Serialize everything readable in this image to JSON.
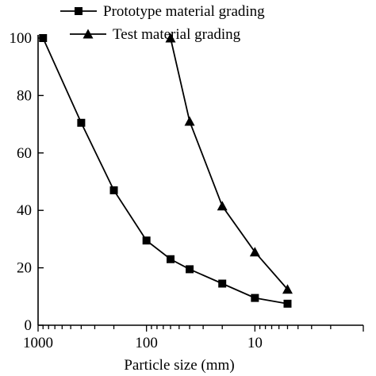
{
  "chart_data": {
    "type": "line",
    "xlabel": "Particle size (mm)",
    "ylabel": "",
    "x_scale": "log",
    "x_reversed": true,
    "xlim": [
      1000,
      1
    ],
    "ylim": [
      0,
      100
    ],
    "x_ticks": [
      1000,
      100,
      10
    ],
    "x_tick_labels": [
      "1000",
      "100",
      "10"
    ],
    "y_ticks": [
      0,
      20,
      40,
      60,
      80,
      100
    ],
    "y_tick_labels": [
      "0",
      "20",
      "40",
      "60",
      "80",
      "100"
    ],
    "grid": false,
    "legend_position": "top",
    "series": [
      {
        "name": "Prototype material grading",
        "marker": "square",
        "color": "#000000",
        "x": [
          900,
          400,
          200,
          100,
          60,
          40,
          20,
          10,
          5
        ],
        "y": [
          100,
          70.5,
          47,
          29.5,
          23,
          19.5,
          14.5,
          9.5,
          7.5
        ]
      },
      {
        "name": "Test material grading",
        "marker": "triangle",
        "color": "#000000",
        "x": [
          60,
          40,
          20,
          10,
          5
        ],
        "y": [
          100,
          71,
          41.5,
          25.5,
          12.5
        ]
      }
    ]
  }
}
